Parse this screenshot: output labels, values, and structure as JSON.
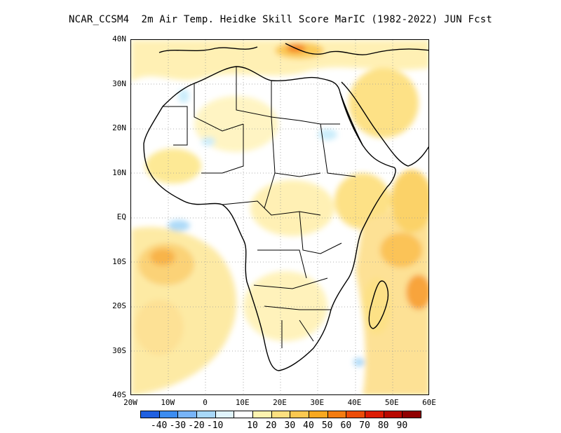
{
  "title": "NCAR_CCSM4  2m Air Temp. Heidke Skill Score MarIC (1982-2022) JUN Fcst",
  "map": {
    "lat_labels": [
      "40N",
      "30N",
      "20N",
      "10N",
      "EQ",
      "10S",
      "20S",
      "30S",
      "40S"
    ],
    "lon_labels": [
      "20W",
      "10W",
      "0",
      "10E",
      "20E",
      "30E",
      "40E",
      "50E",
      "60E"
    ],
    "lon_range": [
      -20,
      60
    ],
    "lat_range": [
      -40,
      40
    ],
    "gridlines": "dotted"
  },
  "legend": {
    "colors": [
      "#2060e0",
      "#3c8cf0",
      "#78b4f8",
      "#a8d8f8",
      "#e0f4fc",
      "#ffffff",
      "#fff4b0",
      "#fde080",
      "#fbc850",
      "#f8a820",
      "#f47c10",
      "#ec4c08",
      "#dc1c04",
      "#b80800",
      "#900000"
    ],
    "labels": [
      "-40",
      "-30",
      "-20",
      "-10",
      "10",
      "20",
      "30",
      "40",
      "50",
      "60",
      "70",
      "80",
      "90"
    ]
  }
}
